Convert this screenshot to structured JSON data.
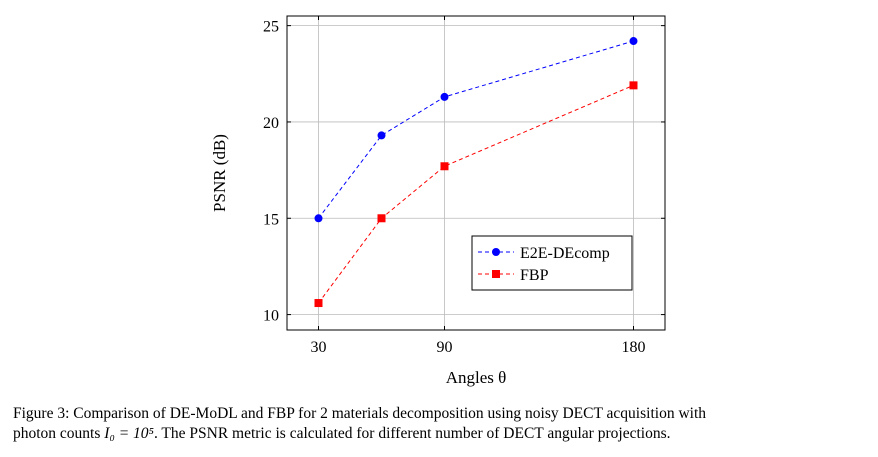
{
  "chart_data": {
    "type": "line",
    "xlabel": "Angles θ",
    "ylabel": "PSNR (dB)",
    "x": [
      30,
      60,
      90,
      180
    ],
    "xlim": [
      15,
      195
    ],
    "ylim": [
      9.2,
      25.5
    ],
    "xticks": [
      30,
      90,
      180
    ],
    "yticks": [
      10,
      15,
      20,
      25
    ],
    "grid": true,
    "legend_position": "bottom-right",
    "series": [
      {
        "name": "E2E-DEcomp",
        "color": "#0000ff",
        "marker": "circle",
        "values": [
          15.0,
          19.3,
          21.3,
          24.2
        ]
      },
      {
        "name": "FBP",
        "color": "#ff0000",
        "marker": "square",
        "values": [
          10.6,
          15.0,
          17.7,
          21.9
        ]
      }
    ]
  },
  "caption": {
    "line1": "Figure 3: Comparison of DE-MoDL and FBP for 2 materials decomposition using noisy DECT acquisition with",
    "line2_pre": "photon counts ",
    "line2_math": "I₀ = 10⁵",
    "line2_post": ". The PSNR metric is calculated for different number of DECT angular projections."
  }
}
